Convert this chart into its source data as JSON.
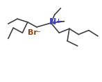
{
  "title": "",
  "background_color": "#ffffff",
  "bond_color": "#404040",
  "atom_colors": {
    "N": "#4040c0",
    "Br": "#8B4513"
  },
  "figsize": [
    1.47,
    1.18
  ],
  "dpi": 100
}
